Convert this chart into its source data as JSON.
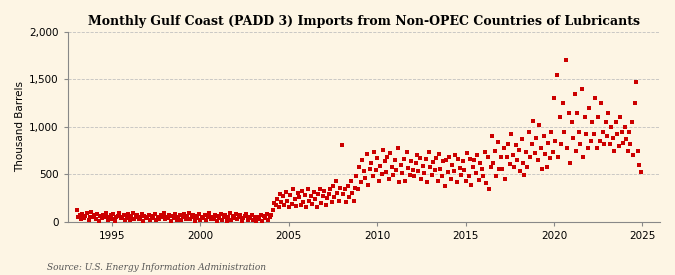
{
  "title": "Monthly Gulf Coast (PADD 3) Imports from Non-OPEC Countries of Lubricants",
  "ylabel": "Thousand Barrels",
  "source": "Source: U.S. Energy Information Administration",
  "marker_color": "#CC0000",
  "background_color": "#FDF5E4",
  "grid_color": "#BBBBBB",
  "ylim": [
    0,
    2000
  ],
  "xlim_start": 1992.5,
  "xlim_end": 2026.0,
  "yticks": [
    0,
    500,
    1000,
    1500,
    2000
  ],
  "xticks": [
    1995,
    2000,
    2005,
    2010,
    2015,
    2020,
    2025
  ],
  "data_points": [
    [
      1993.0,
      120
    ],
    [
      1993.08,
      50
    ],
    [
      1993.17,
      70
    ],
    [
      1993.25,
      30
    ],
    [
      1993.33,
      80
    ],
    [
      1993.42,
      40
    ],
    [
      1993.5,
      60
    ],
    [
      1993.58,
      90
    ],
    [
      1993.67,
      20
    ],
    [
      1993.75,
      55
    ],
    [
      1993.83,
      100
    ],
    [
      1993.92,
      45
    ],
    [
      1994.0,
      70
    ],
    [
      1994.08,
      30
    ],
    [
      1994.17,
      85
    ],
    [
      1994.25,
      10
    ],
    [
      1994.33,
      60
    ],
    [
      1994.42,
      40
    ],
    [
      1994.5,
      75
    ],
    [
      1994.58,
      55
    ],
    [
      1994.67,
      90
    ],
    [
      1994.75,
      20
    ],
    [
      1994.83,
      50
    ],
    [
      1994.92,
      70
    ],
    [
      1995.0,
      30
    ],
    [
      1995.08,
      85
    ],
    [
      1995.17,
      10
    ],
    [
      1995.25,
      45
    ],
    [
      1995.33,
      65
    ],
    [
      1995.42,
      95
    ],
    [
      1995.5,
      35
    ],
    [
      1995.58,
      55
    ],
    [
      1995.67,
      75
    ],
    [
      1995.75,
      20
    ],
    [
      1995.83,
      40
    ],
    [
      1995.92,
      80
    ],
    [
      1996.0,
      15
    ],
    [
      1996.08,
      60
    ],
    [
      1996.17,
      90
    ],
    [
      1996.25,
      30
    ],
    [
      1996.33,
      50
    ],
    [
      1996.42,
      70
    ],
    [
      1996.5,
      25
    ],
    [
      1996.58,
      45
    ],
    [
      1996.67,
      85
    ],
    [
      1996.75,
      10
    ],
    [
      1996.83,
      65
    ],
    [
      1996.92,
      35
    ],
    [
      1997.0,
      55
    ],
    [
      1997.08,
      75
    ],
    [
      1997.17,
      20
    ],
    [
      1997.25,
      40
    ],
    [
      1997.33,
      60
    ],
    [
      1997.42,
      80
    ],
    [
      1997.5,
      15
    ],
    [
      1997.58,
      50
    ],
    [
      1997.67,
      30
    ],
    [
      1997.75,
      70
    ],
    [
      1997.83,
      45
    ],
    [
      1997.92,
      90
    ],
    [
      1998.0,
      25
    ],
    [
      1998.08,
      55
    ],
    [
      1998.17,
      35
    ],
    [
      1998.25,
      75
    ],
    [
      1998.33,
      10
    ],
    [
      1998.42,
      60
    ],
    [
      1998.5,
      40
    ],
    [
      1998.58,
      80
    ],
    [
      1998.67,
      20
    ],
    [
      1998.75,
      50
    ],
    [
      1998.83,
      70
    ],
    [
      1998.92,
      15
    ],
    [
      1999.0,
      45
    ],
    [
      1999.08,
      85
    ],
    [
      1999.17,
      30
    ],
    [
      1999.25,
      65
    ],
    [
      1999.33,
      95
    ],
    [
      1999.42,
      25
    ],
    [
      1999.5,
      55
    ],
    [
      1999.58,
      75
    ],
    [
      1999.67,
      10
    ],
    [
      1999.75,
      40
    ],
    [
      1999.83,
      60
    ],
    [
      1999.92,
      80
    ],
    [
      2000.0,
      20
    ],
    [
      2000.08,
      50
    ],
    [
      2000.17,
      35
    ],
    [
      2000.25,
      70
    ],
    [
      2000.33,
      15
    ],
    [
      2000.42,
      45
    ],
    [
      2000.5,
      90
    ],
    [
      2000.58,
      25
    ],
    [
      2000.67,
      55
    ],
    [
      2000.75,
      30
    ],
    [
      2000.83,
      75
    ],
    [
      2000.92,
      10
    ],
    [
      2001.0,
      65
    ],
    [
      2001.08,
      40
    ],
    [
      2001.17,
      85
    ],
    [
      2001.25,
      20
    ],
    [
      2001.33,
      50
    ],
    [
      2001.42,
      70
    ],
    [
      2001.5,
      5
    ],
    [
      2001.58,
      45
    ],
    [
      2001.67,
      95
    ],
    [
      2001.75,
      15
    ],
    [
      2001.83,
      60
    ],
    [
      2001.92,
      35
    ],
    [
      2002.0,
      80
    ],
    [
      2002.08,
      25
    ],
    [
      2002.17,
      55
    ],
    [
      2002.25,
      75
    ],
    [
      2002.33,
      10
    ],
    [
      2002.42,
      40
    ],
    [
      2002.5,
      60
    ],
    [
      2002.58,
      80
    ],
    [
      2002.67,
      20
    ],
    [
      2002.75,
      50
    ],
    [
      2002.83,
      35
    ],
    [
      2002.92,
      70
    ],
    [
      2003.0,
      15
    ],
    [
      2003.08,
      45
    ],
    [
      2003.17,
      5
    ],
    [
      2003.25,
      55
    ],
    [
      2003.33,
      30
    ],
    [
      2003.42,
      75
    ],
    [
      2003.5,
      10
    ],
    [
      2003.58,
      65
    ],
    [
      2003.67,
      40
    ],
    [
      2003.75,
      85
    ],
    [
      2003.83,
      20
    ],
    [
      2003.92,
      50
    ],
    [
      2004.0,
      70
    ],
    [
      2004.08,
      120
    ],
    [
      2004.17,
      200
    ],
    [
      2004.25,
      180
    ],
    [
      2004.33,
      240
    ],
    [
      2004.42,
      160
    ],
    [
      2004.5,
      290
    ],
    [
      2004.58,
      210
    ],
    [
      2004.67,
      270
    ],
    [
      2004.75,
      180
    ],
    [
      2004.83,
      310
    ],
    [
      2004.92,
      220
    ],
    [
      2005.0,
      150
    ],
    [
      2005.08,
      280
    ],
    [
      2005.17,
      190
    ],
    [
      2005.25,
      350
    ],
    [
      2005.33,
      240
    ],
    [
      2005.42,
      170
    ],
    [
      2005.5,
      300
    ],
    [
      2005.58,
      260
    ],
    [
      2005.67,
      180
    ],
    [
      2005.75,
      320
    ],
    [
      2005.83,
      210
    ],
    [
      2005.92,
      280
    ],
    [
      2006.0,
      150
    ],
    [
      2006.08,
      340
    ],
    [
      2006.17,
      220
    ],
    [
      2006.25,
      270
    ],
    [
      2006.33,
      190
    ],
    [
      2006.42,
      310
    ],
    [
      2006.5,
      240
    ],
    [
      2006.58,
      160
    ],
    [
      2006.67,
      290
    ],
    [
      2006.75,
      350
    ],
    [
      2006.83,
      200
    ],
    [
      2006.92,
      270
    ],
    [
      2007.0,
      320
    ],
    [
      2007.08,
      180
    ],
    [
      2007.17,
      250
    ],
    [
      2007.25,
      290
    ],
    [
      2007.33,
      340
    ],
    [
      2007.42,
      210
    ],
    [
      2007.5,
      380
    ],
    [
      2007.58,
      260
    ],
    [
      2007.67,
      430
    ],
    [
      2007.75,
      300
    ],
    [
      2007.83,
      220
    ],
    [
      2007.92,
      360
    ],
    [
      2008.0,
      810
    ],
    [
      2008.08,
      290
    ],
    [
      2008.17,
      340
    ],
    [
      2008.25,
      210
    ],
    [
      2008.33,
      380
    ],
    [
      2008.42,
      260
    ],
    [
      2008.5,
      430
    ],
    [
      2008.58,
      300
    ],
    [
      2008.67,
      220
    ],
    [
      2008.75,
      360
    ],
    [
      2008.83,
      480
    ],
    [
      2008.92,
      350
    ],
    [
      2009.0,
      580
    ],
    [
      2009.08,
      420
    ],
    [
      2009.17,
      650
    ],
    [
      2009.25,
      530
    ],
    [
      2009.33,
      460
    ],
    [
      2009.42,
      710
    ],
    [
      2009.5,
      390
    ],
    [
      2009.58,
      560
    ],
    [
      2009.67,
      620
    ],
    [
      2009.75,
      480
    ],
    [
      2009.83,
      740
    ],
    [
      2009.92,
      550
    ],
    [
      2010.0,
      670
    ],
    [
      2010.08,
      430
    ],
    [
      2010.17,
      590
    ],
    [
      2010.25,
      500
    ],
    [
      2010.33,
      760
    ],
    [
      2010.42,
      640
    ],
    [
      2010.5,
      520
    ],
    [
      2010.58,
      680
    ],
    [
      2010.67,
      450
    ],
    [
      2010.75,
      720
    ],
    [
      2010.83,
      580
    ],
    [
      2010.92,
      490
    ],
    [
      2011.0,
      650
    ],
    [
      2011.08,
      540
    ],
    [
      2011.17,
      780
    ],
    [
      2011.25,
      420
    ],
    [
      2011.33,
      600
    ],
    [
      2011.42,
      510
    ],
    [
      2011.5,
      660
    ],
    [
      2011.58,
      430
    ],
    [
      2011.67,
      730
    ],
    [
      2011.75,
      570
    ],
    [
      2011.83,
      490
    ],
    [
      2011.92,
      640
    ],
    [
      2012.0,
      550
    ],
    [
      2012.08,
      480
    ],
    [
      2012.17,
      620
    ],
    [
      2012.25,
      700
    ],
    [
      2012.33,
      530
    ],
    [
      2012.42,
      670
    ],
    [
      2012.5,
      450
    ],
    [
      2012.58,
      590
    ],
    [
      2012.67,
      510
    ],
    [
      2012.75,
      660
    ],
    [
      2012.83,
      420
    ],
    [
      2012.92,
      740
    ],
    [
      2013.0,
      580
    ],
    [
      2013.08,
      490
    ],
    [
      2013.17,
      630
    ],
    [
      2013.25,
      550
    ],
    [
      2013.33,
      670
    ],
    [
      2013.42,
      430
    ],
    [
      2013.5,
      710
    ],
    [
      2013.58,
      560
    ],
    [
      2013.67,
      480
    ],
    [
      2013.75,
      640
    ],
    [
      2013.83,
      380
    ],
    [
      2013.92,
      650
    ],
    [
      2014.0,
      520
    ],
    [
      2014.08,
      680
    ],
    [
      2014.17,
      450
    ],
    [
      2014.25,
      600
    ],
    [
      2014.33,
      530
    ],
    [
      2014.42,
      700
    ],
    [
      2014.5,
      420
    ],
    [
      2014.58,
      660
    ],
    [
      2014.67,
      570
    ],
    [
      2014.75,
      490
    ],
    [
      2014.83,
      640
    ],
    [
      2014.92,
      550
    ],
    [
      2015.0,
      430
    ],
    [
      2015.08,
      720
    ],
    [
      2015.17,
      480
    ],
    [
      2015.25,
      660
    ],
    [
      2015.33,
      390
    ],
    [
      2015.42,
      580
    ],
    [
      2015.5,
      650
    ],
    [
      2015.58,
      510
    ],
    [
      2015.67,
      700
    ],
    [
      2015.75,
      440
    ],
    [
      2015.83,
      620
    ],
    [
      2015.92,
      560
    ],
    [
      2016.0,
      480
    ],
    [
      2016.08,
      730
    ],
    [
      2016.17,
      410
    ],
    [
      2016.25,
      680
    ],
    [
      2016.33,
      350
    ],
    [
      2016.42,
      580
    ],
    [
      2016.5,
      900
    ],
    [
      2016.58,
      620
    ],
    [
      2016.67,
      750
    ],
    [
      2016.75,
      480
    ],
    [
      2016.83,
      840
    ],
    [
      2016.92,
      560
    ],
    [
      2017.0,
      680
    ],
    [
      2017.08,
      560
    ],
    [
      2017.17,
      780
    ],
    [
      2017.25,
      450
    ],
    [
      2017.33,
      680
    ],
    [
      2017.42,
      820
    ],
    [
      2017.5,
      610
    ],
    [
      2017.58,
      920
    ],
    [
      2017.67,
      700
    ],
    [
      2017.75,
      580
    ],
    [
      2017.83,
      810
    ],
    [
      2017.92,
      650
    ],
    [
      2018.0,
      760
    ],
    [
      2018.08,
      530
    ],
    [
      2018.17,
      870
    ],
    [
      2018.25,
      620
    ],
    [
      2018.33,
      490
    ],
    [
      2018.42,
      730
    ],
    [
      2018.5,
      580
    ],
    [
      2018.58,
      950
    ],
    [
      2018.67,
      680
    ],
    [
      2018.75,
      820
    ],
    [
      2018.83,
      1060
    ],
    [
      2018.92,
      720
    ],
    [
      2019.0,
      880
    ],
    [
      2019.08,
      650
    ],
    [
      2019.17,
      1020
    ],
    [
      2019.25,
      780
    ],
    [
      2019.33,
      560
    ],
    [
      2019.42,
      900
    ],
    [
      2019.5,
      710
    ],
    [
      2019.58,
      580
    ],
    [
      2019.67,
      830
    ],
    [
      2019.75,
      670
    ],
    [
      2019.83,
      950
    ],
    [
      2019.92,
      730
    ],
    [
      2020.0,
      1300
    ],
    [
      2020.08,
      850
    ],
    [
      2020.17,
      1550
    ],
    [
      2020.25,
      680
    ],
    [
      2020.33,
      1100
    ],
    [
      2020.42,
      820
    ],
    [
      2020.5,
      1250
    ],
    [
      2020.58,
      950
    ],
    [
      2020.67,
      1700
    ],
    [
      2020.75,
      780
    ],
    [
      2020.83,
      1150
    ],
    [
      2020.92,
      620
    ],
    [
      2021.0,
      1050
    ],
    [
      2021.08,
      880
    ],
    [
      2021.17,
      1350
    ],
    [
      2021.25,
      750
    ],
    [
      2021.33,
      1150
    ],
    [
      2021.42,
      950
    ],
    [
      2021.5,
      820
    ],
    [
      2021.58,
      1400
    ],
    [
      2021.67,
      680
    ],
    [
      2021.75,
      1100
    ],
    [
      2021.83,
      920
    ],
    [
      2021.92,
      780
    ],
    [
      2022.0,
      1200
    ],
    [
      2022.08,
      850
    ],
    [
      2022.17,
      1050
    ],
    [
      2022.25,
      920
    ],
    [
      2022.33,
      1300
    ],
    [
      2022.42,
      780
    ],
    [
      2022.5,
      1100
    ],
    [
      2022.58,
      850
    ],
    [
      2022.67,
      1250
    ],
    [
      2022.75,
      950
    ],
    [
      2022.83,
      820
    ],
    [
      2022.92,
      1050
    ],
    [
      2023.0,
      900
    ],
    [
      2023.08,
      1150
    ],
    [
      2023.17,
      820
    ],
    [
      2023.25,
      1000
    ],
    [
      2023.33,
      880
    ],
    [
      2023.42,
      750
    ],
    [
      2023.5,
      1050
    ],
    [
      2023.58,
      920
    ],
    [
      2023.67,
      800
    ],
    [
      2023.75,
      1100
    ],
    [
      2023.83,
      950
    ],
    [
      2023.92,
      830
    ],
    [
      2024.0,
      1000
    ],
    [
      2024.08,
      870
    ],
    [
      2024.17,
      750
    ],
    [
      2024.25,
      950
    ],
    [
      2024.33,
      820
    ],
    [
      2024.42,
      1050
    ],
    [
      2024.5,
      700
    ],
    [
      2024.58,
      1250
    ],
    [
      2024.67,
      1470
    ],
    [
      2024.75,
      750
    ],
    [
      2024.83,
      600
    ],
    [
      2024.92,
      520
    ]
  ]
}
